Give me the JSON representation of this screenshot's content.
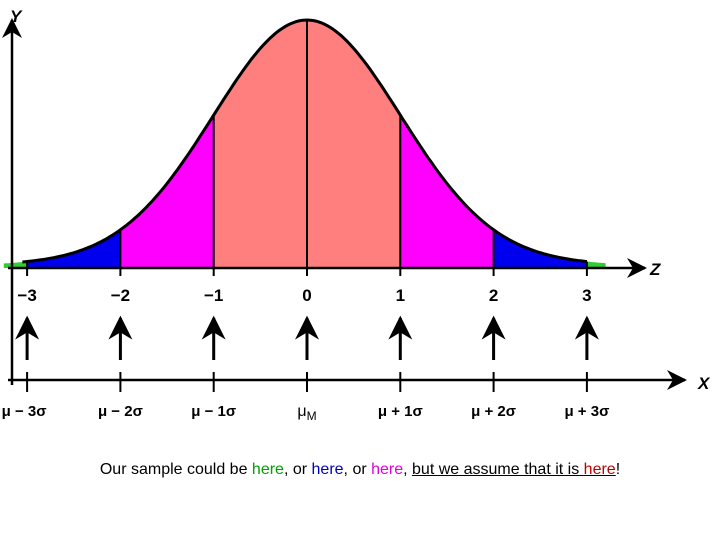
{
  "axes": {
    "y": "Y",
    "z": "Z",
    "x": "X"
  },
  "z_ticks": [
    "−3",
    "−2",
    "−1",
    "0",
    "1",
    "2",
    "3"
  ],
  "x_labels": [
    "μ − 3σ",
    "μ − 2σ",
    "μ − 1σ",
    "μ",
    "μ + 1σ",
    "μ + 2σ",
    "μ + 3σ"
  ],
  "mean_subscript": "M",
  "caption": [
    "Our sample could be ",
    "here",
    ", or ",
    "here",
    ",  or ",
    "here",
    ",  ",
    "but we assume that it is ",
    "here",
    "!"
  ]
}
